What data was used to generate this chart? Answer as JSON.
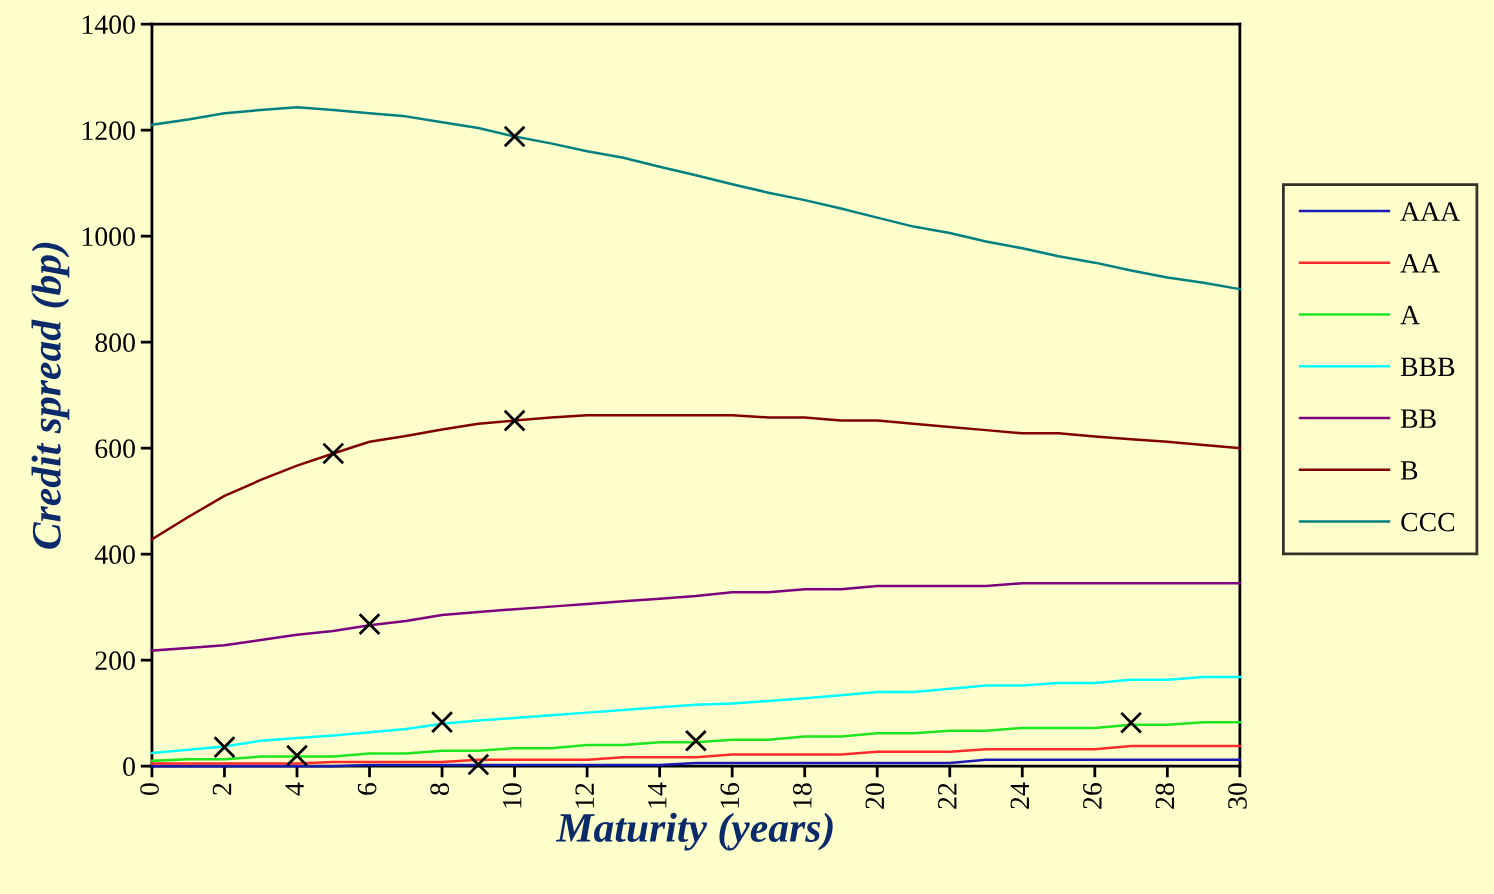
{
  "chart_data": {
    "type": "line",
    "xlabel": "Maturity (years)",
    "ylabel": "Credit spread (bp)",
    "x": [
      0,
      1,
      2,
      3,
      4,
      5,
      6,
      7,
      8,
      9,
      10,
      11,
      12,
      13,
      14,
      15,
      16,
      17,
      18,
      19,
      20,
      21,
      22,
      23,
      24,
      25,
      26,
      27,
      28,
      29,
      30
    ],
    "series": [
      {
        "name": "AAA",
        "color": "#1a1ab4",
        "values": [
          0,
          0,
          0,
          0,
          0,
          0,
          2,
          2,
          2,
          2,
          2,
          2,
          2,
          2,
          2,
          6,
          6,
          6,
          6,
          6,
          6,
          6,
          6,
          12,
          12,
          12,
          12,
          12,
          12,
          12,
          12
        ]
      },
      {
        "name": "AA",
        "color": "#ff2a2a",
        "values": [
          5,
          5,
          5,
          5,
          5,
          8,
          8,
          8,
          8,
          12,
          12,
          12,
          12,
          17,
          17,
          17,
          22,
          22,
          22,
          22,
          27,
          27,
          27,
          32,
          32,
          32,
          32,
          38,
          38,
          38,
          38
        ]
      },
      {
        "name": "A",
        "color": "#1ee61e",
        "values": [
          10,
          13,
          13,
          18,
          18,
          18,
          24,
          24,
          29,
          29,
          34,
          34,
          40,
          40,
          45,
          45,
          50,
          50,
          56,
          56,
          62,
          62,
          67,
          67,
          72,
          72,
          72,
          78,
          78,
          83,
          83
        ]
      },
      {
        "name": "BBB",
        "color": "#00ffff",
        "values": [
          25,
          31,
          37,
          48,
          53,
          58,
          64,
          70,
          80,
          86,
          91,
          96,
          101,
          106,
          111,
          116,
          118,
          123,
          128,
          134,
          140,
          140,
          146,
          152,
          152,
          157,
          157,
          163,
          163,
          168,
          168
        ]
      },
      {
        "name": "BB",
        "color": "#7f007f",
        "values": [
          218,
          223,
          228,
          238,
          248,
          255,
          266,
          274,
          285,
          291,
          296,
          301,
          306,
          311,
          316,
          321,
          328,
          328,
          334,
          334,
          340,
          340,
          340,
          340,
          345,
          345,
          345,
          345,
          345,
          345,
          345
        ]
      },
      {
        "name": "B",
        "color": "#800000",
        "values": [
          428,
          470,
          510,
          540,
          567,
          590,
          612,
          623,
          635,
          646,
          652,
          658,
          662,
          662,
          662,
          662,
          662,
          658,
          658,
          652,
          652,
          646,
          640,
          634,
          628,
          628,
          622,
          617,
          612,
          606,
          600
        ]
      },
      {
        "name": "CCC",
        "color": "#008080",
        "values": [
          1210,
          1220,
          1232,
          1238,
          1243,
          1238,
          1232,
          1226,
          1215,
          1204,
          1188,
          1175,
          1160,
          1148,
          1131,
          1115,
          1098,
          1082,
          1068,
          1052,
          1035,
          1018,
          1006,
          990,
          977,
          962,
          950,
          935,
          922,
          912,
          900
        ]
      },
      {
        "type": "scatter",
        "marker": "cross",
        "color": "#000000",
        "x": [
          2,
          4,
          5,
          6,
          8,
          9,
          10,
          10,
          15,
          27
        ],
        "values": [
          36,
          20,
          590,
          268,
          83,
          3,
          1188,
          652,
          48,
          82
        ]
      }
    ],
    "xlim": [
      0,
      30
    ],
    "xticks": [
      0,
      2,
      4,
      6,
      8,
      10,
      12,
      14,
      16,
      18,
      20,
      22,
      24,
      26,
      28,
      30
    ],
    "ylim": [
      0,
      1400
    ],
    "yticks": [
      0,
      200,
      400,
      600,
      800,
      1000,
      1200,
      1400
    ],
    "grid": false,
    "legend": "right"
  }
}
